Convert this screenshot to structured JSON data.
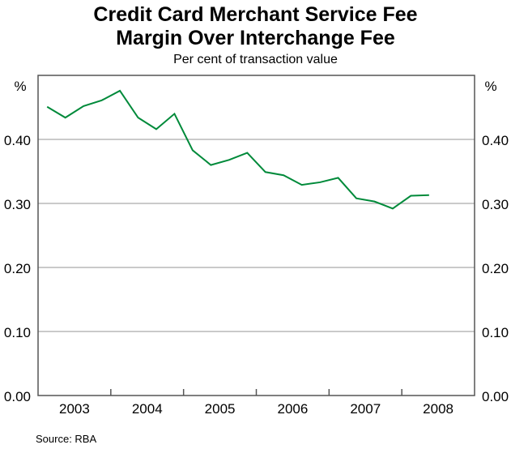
{
  "chart_data": {
    "type": "line",
    "title": [
      "Credit Card Merchant Service Fee",
      "Margin Over Interchange Fee"
    ],
    "subtitle": "Per cent of transaction value",
    "ylabel_left": "%",
    "ylabel_right": "%",
    "ylim": [
      0,
      0.5
    ],
    "yticks": [
      "0.00",
      "0.10",
      "0.20",
      "0.30",
      "0.40"
    ],
    "ytick_values": [
      0,
      0.1,
      0.2,
      0.3,
      0.4
    ],
    "xlim": [
      "2003 Q1",
      "2008 Q4"
    ],
    "xtick_labels": [
      "2003",
      "2004",
      "2005",
      "2006",
      "2007",
      "2008"
    ],
    "grid": true,
    "line_color": "#008a3a",
    "x": [
      "2003 Q1",
      "2003 Q2",
      "2003 Q3",
      "2003 Q4",
      "2004 Q1",
      "2004 Q2",
      "2004 Q3",
      "2004 Q4",
      "2005 Q1",
      "2005 Q2",
      "2005 Q3",
      "2005 Q4",
      "2006 Q1",
      "2006 Q2",
      "2006 Q3",
      "2006 Q4",
      "2007 Q1",
      "2007 Q2",
      "2007 Q3",
      "2007 Q4",
      "2008 Q1",
      "2008 Q2"
    ],
    "values": [
      0.451,
      0.434,
      0.452,
      0.461,
      0.476,
      0.434,
      0.416,
      0.44,
      0.383,
      0.36,
      0.368,
      0.379,
      0.349,
      0.344,
      0.329,
      0.333,
      0.34,
      0.308,
      0.303,
      0.292,
      0.312,
      0.313
    ]
  },
  "source": "Source: RBA"
}
